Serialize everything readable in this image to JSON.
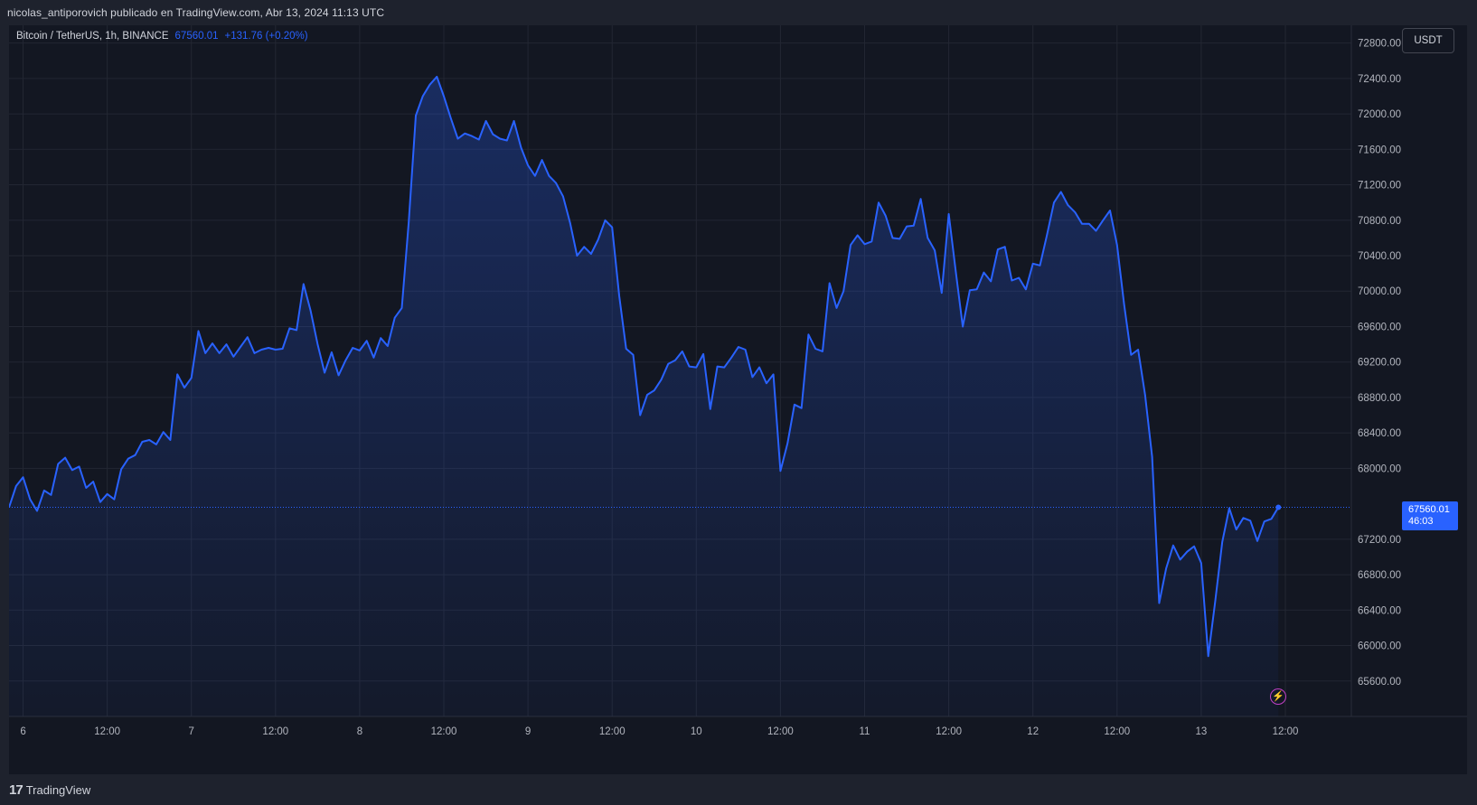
{
  "header": {
    "published_by": "nicolas_antiporovich publicado en TradingView.com, Abr 13, 2024 11:13 UTC"
  },
  "legend": {
    "symbol": "Bitcoin / TetherUS, 1h, BINANCE",
    "last_price": "67560.01",
    "change": "+131.76 (+0.20%)"
  },
  "currency": "USDT",
  "price_tag": {
    "price": "67560.01",
    "countdown": "46:03"
  },
  "footer": {
    "logo": "17",
    "brand": "TradingView"
  },
  "colors": {
    "line": "#2962ff",
    "background": "#131722",
    "grid": "#232733",
    "accent_bolt": "#c341c7"
  },
  "chart_data": {
    "type": "area",
    "title": "Bitcoin / TetherUS, 1h, BINANCE",
    "xlabel": "",
    "ylabel": "",
    "ylim": [
      65200,
      73000
    ],
    "xlim": [
      0,
      182
    ],
    "yticks": [
      "72800.00",
      "72400.00",
      "72000.00",
      "71600.00",
      "71200.00",
      "70800.00",
      "70400.00",
      "70000.00",
      "69600.00",
      "69200.00",
      "68800.00",
      "68400.00",
      "68000.00",
      "67200.00",
      "66800.00",
      "66400.00",
      "66000.00",
      "65600.00"
    ],
    "xticks": [
      {
        "x": 2,
        "label": "6"
      },
      {
        "x": 14,
        "label": "12:00"
      },
      {
        "x": 26,
        "label": "7"
      },
      {
        "x": 38,
        "label": "12:00"
      },
      {
        "x": 50,
        "label": "8"
      },
      {
        "x": 62,
        "label": "12:00"
      },
      {
        "x": 74,
        "label": "9"
      },
      {
        "x": 86,
        "label": "12:00"
      },
      {
        "x": 98,
        "label": "10"
      },
      {
        "x": 110,
        "label": "12:00"
      },
      {
        "x": 122,
        "label": "11"
      },
      {
        "x": 134,
        "label": "12:00"
      },
      {
        "x": 146,
        "label": "12"
      },
      {
        "x": 158,
        "label": "12:00"
      },
      {
        "x": 170,
        "label": "13"
      },
      {
        "x": 182,
        "label": "12:00"
      }
    ],
    "last_value": 67560.01,
    "series": [
      {
        "x": [
          0,
          1,
          2,
          3,
          4,
          5,
          6,
          7,
          8,
          9,
          10,
          11,
          12,
          13,
          14,
          15,
          16,
          17,
          18,
          19,
          20,
          21,
          22,
          23,
          24,
          25,
          26,
          27,
          28,
          29,
          30,
          31,
          32,
          33,
          34,
          35,
          36,
          37,
          38,
          39,
          40,
          41,
          42,
          43,
          44,
          45,
          46,
          47,
          48,
          49,
          50,
          51,
          52,
          53,
          54,
          55,
          56,
          57,
          58,
          59,
          60,
          61,
          62,
          63,
          64,
          65,
          66,
          67,
          68,
          69,
          70,
          71,
          72,
          73,
          74,
          75,
          76,
          77,
          78,
          79,
          80,
          81,
          82,
          83,
          84,
          85,
          86,
          87,
          88,
          89,
          90,
          91,
          92,
          93,
          94,
          95,
          96,
          97,
          98,
          99,
          100,
          101,
          102,
          103,
          104,
          105,
          106,
          107,
          108,
          109,
          110,
          111,
          112,
          113,
          114,
          115,
          116,
          117,
          118,
          119,
          120,
          121,
          122,
          123,
          124,
          125,
          126,
          127,
          128,
          129,
          130,
          131,
          132,
          133,
          134,
          135,
          136,
          137,
          138,
          139,
          140,
          141,
          142,
          143,
          144,
          145,
          146,
          147,
          148,
          149,
          150,
          151,
          152,
          153,
          154,
          155,
          156,
          157,
          158,
          159,
          160,
          161,
          162,
          163,
          164,
          165,
          166,
          167,
          168,
          169,
          170,
          171,
          172,
          173,
          174,
          175,
          176,
          177,
          178,
          179,
          180,
          181
        ],
        "values": [
          67560,
          67800,
          67900,
          67650,
          67520,
          67750,
          67700,
          68050,
          68120,
          67980,
          68020,
          67780,
          67850,
          67620,
          67710,
          67650,
          67990,
          68110,
          68150,
          68300,
          68320,
          68270,
          68410,
          68320,
          69060,
          68910,
          69020,
          69550,
          69300,
          69410,
          69300,
          69400,
          69260,
          69370,
          69480,
          69300,
          69340,
          69360,
          69340,
          69350,
          69580,
          69560,
          70080,
          69780,
          69400,
          69080,
          69310,
          69050,
          69220,
          69360,
          69330,
          69440,
          69250,
          69470,
          69380,
          69700,
          69810,
          70780,
          71980,
          72200,
          72330,
          72420,
          72200,
          71950,
          71720,
          71780,
          71750,
          71710,
          71920,
          71770,
          71720,
          71700,
          71920,
          71620,
          71420,
          71300,
          71480,
          71300,
          71220,
          71070,
          70770,
          70400,
          70500,
          70420,
          70580,
          70800,
          70720,
          69950,
          69350,
          69280,
          68600,
          68830,
          68880,
          69000,
          69180,
          69220,
          69320,
          69150,
          69140,
          69290,
          68670,
          69150,
          69140,
          69250,
          69370,
          69340,
          69030,
          69140,
          68960,
          69060,
          67970,
          68280,
          68720,
          68680,
          69510,
          69350,
          69320,
          70090,
          69810,
          70000,
          70520,
          70630,
          70530,
          70560,
          71000,
          70850,
          70600,
          70590,
          70730,
          70740,
          71040,
          70600,
          70460,
          69980,
          70870,
          70220,
          69600,
          70010,
          70020,
          70210,
          70110,
          70470,
          70500,
          70120,
          70150,
          70020,
          70310,
          70290,
          70630,
          71000,
          71120,
          70970,
          70890,
          70760,
          70760,
          70680,
          70800,
          70910,
          70520,
          69850,
          69280,
          69340,
          68830,
          68130,
          66480,
          66870,
          67130,
          66970,
          67060,
          67120,
          66930,
          65880,
          66500,
          67170,
          67550,
          67310,
          67440,
          67410,
          67180,
          67400,
          67430,
          67560
        ]
      }
    ]
  }
}
